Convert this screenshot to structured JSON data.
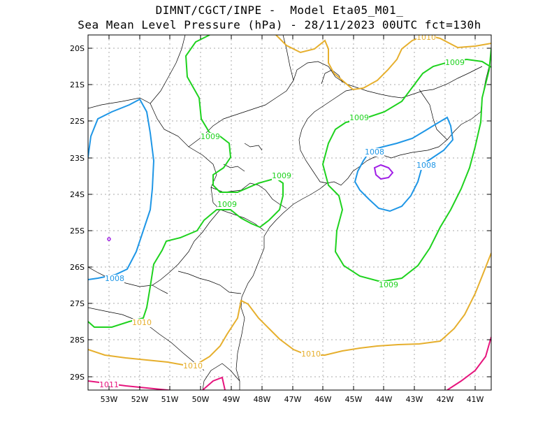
{
  "header": {
    "line1": "DIMNT/CGCT/INPE -  Model Eta05_M01_",
    "line2": "Sea Mean Level Pressure (hPa) - 28/11/2023 00UTC fct=130h"
  },
  "axes": {
    "lat_labels": [
      "20S",
      "21S",
      "22S",
      "23S",
      "24S",
      "25S",
      "26S",
      "27S",
      "28S",
      "29S"
    ],
    "lon_labels": [
      "53W",
      "52W",
      "51W",
      "50W",
      "49W",
      "48W",
      "47W",
      "46W",
      "45W",
      "44W",
      "43W",
      "42W",
      "41W"
    ]
  },
  "colors": {
    "c1008": "#1e96e6",
    "c1009": "#1ed21e",
    "c1010": "#e6af2d",
    "c1011": "#e6157d",
    "c1007": "#a01ee6",
    "coast": "#000000",
    "grid": "#aaaaaa"
  },
  "contour_labels": [
    {
      "text": "1010",
      "color": "c1010",
      "key": "a"
    },
    {
      "text": "1009",
      "color": "c1009",
      "key": "b"
    },
    {
      "text": "1009",
      "color": "c1009",
      "key": "c"
    },
    {
      "text": "1009",
      "color": "c1009",
      "key": "d"
    },
    {
      "text": "1009",
      "color": "c1009",
      "key": "e"
    },
    {
      "text": "1008",
      "color": "c1008",
      "key": "f"
    },
    {
      "text": "1008",
      "color": "c1008",
      "key": "g"
    },
    {
      "text": "1009",
      "color": "c1009",
      "key": "h"
    },
    {
      "text": "1008",
      "color": "c1008",
      "key": "i"
    },
    {
      "text": "1009",
      "color": "c1009",
      "key": "j"
    },
    {
      "text": "1010",
      "color": "c1010",
      "key": "k"
    },
    {
      "text": "1010",
      "color": "c1010",
      "key": "l"
    },
    {
      "text": "1010",
      "color": "c1010",
      "key": "m"
    },
    {
      "text": "1011",
      "color": "c1011",
      "key": "n"
    }
  ]
}
